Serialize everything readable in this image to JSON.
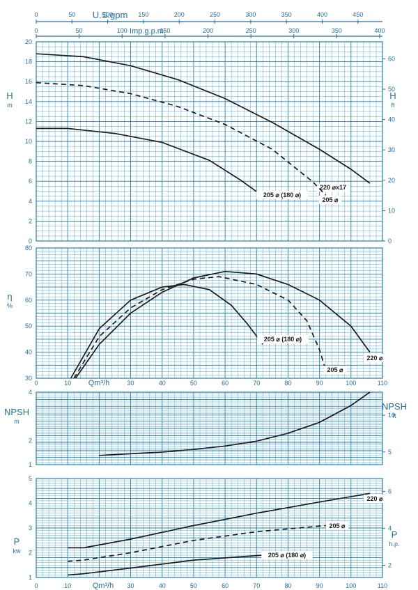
{
  "colors": {
    "grid": "#3aa2d6",
    "gridMajor": "#1f7fb5",
    "axisText": "#1f6fa8",
    "curve": "#1a1a1a",
    "background": "#ffffff"
  },
  "top_scales": {
    "usgpm": {
      "label": "U.S.gpm",
      "ticks": [
        0,
        50,
        100,
        150,
        200,
        250,
        300,
        350,
        400,
        450
      ]
    },
    "impgpm": {
      "label": "Imp.g.p.m.",
      "ticks": [
        0,
        50,
        100,
        150,
        200,
        250,
        300,
        350,
        400
      ]
    }
  },
  "x_axis": {
    "label": "Qm³/h",
    "ticks": [
      0,
      10,
      20,
      30,
      40,
      50,
      60,
      70,
      80,
      90,
      100,
      110
    ]
  },
  "chart_data": [
    {
      "type": "line",
      "id": "head",
      "xlim": [
        0,
        110
      ],
      "ylim": [
        0,
        20
      ],
      "ylabel_left": {
        "main": "H",
        "unit": "m"
      },
      "ylabel_right": {
        "main": "H",
        "unit": "ft"
      },
      "left_ticks": [
        0,
        2,
        4,
        6,
        8,
        10,
        12,
        14,
        16,
        18,
        20
      ],
      "right_ticks": [
        0,
        10,
        20,
        30,
        40,
        50,
        60
      ],
      "series": [
        {
          "name": "220 ⌀x17",
          "style": "solid",
          "x": [
            0,
            15,
            30,
            45,
            60,
            75,
            90,
            100,
            106
          ],
          "y": [
            18.8,
            18.5,
            17.6,
            16.2,
            14.3,
            11.9,
            9.2,
            7.2,
            5.8
          ]
        },
        {
          "name": "205 ⌀",
          "style": "dashed",
          "x": [
            0,
            15,
            30,
            45,
            60,
            75,
            88,
            92
          ],
          "y": [
            15.9,
            15.6,
            14.8,
            13.5,
            11.7,
            9.2,
            5.9,
            4.6
          ]
        },
        {
          "name": "205 ⌀ (180 ⌀)",
          "style": "solid",
          "x": [
            0,
            10,
            25,
            40,
            55,
            65,
            72
          ],
          "y": [
            11.3,
            11.3,
            10.8,
            9.9,
            8.1,
            6.1,
            4.5
          ]
        }
      ]
    },
    {
      "type": "line",
      "id": "efficiency",
      "xlim": [
        0,
        110
      ],
      "ylim": [
        30,
        80
      ],
      "ylabel_left": {
        "main": "η",
        "unit": "%"
      },
      "left_ticks": [
        30,
        40,
        50,
        60,
        70,
        80
      ],
      "series": [
        {
          "name": "205 ⌀ (180 ⌀)",
          "style": "solid",
          "x": [
            11,
            20,
            30,
            40,
            47,
            55,
            62,
            67,
            72
          ],
          "y": [
            30,
            49,
            60,
            65,
            66,
            64,
            58,
            51,
            43
          ]
        },
        {
          "name": "205 ⌀",
          "style": "dashed",
          "x": [
            12,
            20,
            30,
            40,
            50,
            58,
            70,
            80,
            86,
            90,
            92
          ],
          "y": [
            30,
            46,
            57,
            64,
            68,
            69,
            66,
            60,
            52,
            41,
            33
          ]
        },
        {
          "name": "220 ⌀",
          "style": "solid",
          "x": [
            12.5,
            20,
            30,
            40,
            50,
            60,
            70,
            80,
            90,
            100,
            106
          ],
          "y": [
            30,
            43,
            55,
            63,
            68.5,
            71,
            70,
            66,
            60,
            50,
            40
          ]
        }
      ]
    },
    {
      "type": "line",
      "id": "npsh",
      "xlim": [
        0,
        110
      ],
      "ylim": [
        1,
        4
      ],
      "ylabel_left": {
        "main": "NPSH",
        "unit": "m"
      },
      "ylabel_right": {
        "main": "NPSH",
        "unit": "ft"
      },
      "left_ticks": [
        1,
        2,
        4
      ],
      "right_ticks": [
        5,
        10
      ],
      "series": [
        {
          "name": "NPSH",
          "style": "solid",
          "x": [
            20,
            30,
            40,
            50,
            60,
            70,
            80,
            90,
            100,
            106
          ],
          "y": [
            1.38,
            1.45,
            1.52,
            1.63,
            1.77,
            1.97,
            2.3,
            2.75,
            3.45,
            4.0
          ]
        }
      ]
    },
    {
      "type": "line",
      "id": "power",
      "xlim": [
        0,
        110
      ],
      "ylim": [
        1,
        5
      ],
      "ylabel_left": {
        "main": "P",
        "unit": "kw"
      },
      "ylabel_right": {
        "main": "P",
        "unit": "h.p."
      },
      "left_ticks": [
        1,
        2,
        3,
        4,
        5
      ],
      "right_ticks": [
        2,
        4,
        6
      ],
      "series": [
        {
          "name": "220 ⌀",
          "style": "solid",
          "x": [
            10,
            15,
            30,
            50,
            70,
            90,
            106
          ],
          "y": [
            2.2,
            2.2,
            2.55,
            3.1,
            3.6,
            4.05,
            4.4
          ]
        },
        {
          "name": "205 ⌀",
          "style": "dashed",
          "x": [
            10,
            15,
            30,
            50,
            70,
            92
          ],
          "y": [
            1.65,
            1.7,
            2.0,
            2.5,
            2.85,
            3.1
          ]
        },
        {
          "name": "205 ⌀ (180 ⌀)",
          "style": "solid",
          "x": [
            10,
            15,
            30,
            50,
            72
          ],
          "y": [
            1.1,
            1.15,
            1.38,
            1.7,
            1.9
          ]
        }
      ]
    }
  ]
}
